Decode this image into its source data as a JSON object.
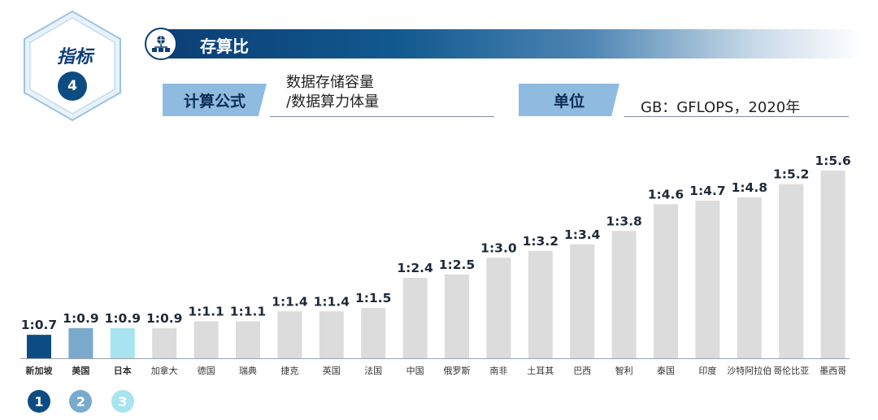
{
  "indicator": {
    "label": "指标",
    "number": "4"
  },
  "header": {
    "title": "存算比",
    "icon": "server-network-icon"
  },
  "formula": {
    "tag": "计算公式",
    "line1": "数据存储容量",
    "line2": "/数据算力体量"
  },
  "unit": {
    "tag": "单位",
    "value": "GB：GFLOPS，2020年"
  },
  "colors": {
    "dark_blue": "#0d4c82",
    "mid_blue": "#79aacb",
    "light_blue": "#a8e4ef",
    "grey": "#dcdcdc",
    "accent": "#8fbbe0"
  },
  "ranks": [
    "1",
    "2",
    "3"
  ],
  "chart_data": {
    "type": "bar",
    "title": "",
    "xlabel": "",
    "ylabel": "",
    "ylim": [
      0,
      5.6
    ],
    "grid": false,
    "categories": [
      "新加坡",
      "美国",
      "日本",
      "加拿大",
      "德国",
      "瑞典",
      "捷克",
      "英国",
      "法国",
      "中国",
      "俄罗斯",
      "南非",
      "土耳其",
      "巴西",
      "智利",
      "泰国",
      "印度",
      "沙特阿拉伯",
      "哥伦比亚",
      "墨西哥"
    ],
    "values": [
      0.7,
      0.9,
      0.9,
      0.9,
      1.1,
      1.1,
      1.4,
      1.4,
      1.5,
      2.4,
      2.5,
      3.0,
      3.2,
      3.4,
      3.8,
      4.6,
      4.7,
      4.8,
      5.2,
      5.6
    ],
    "labels": [
      "1:0.7",
      "1:0.9",
      "1:0.9",
      "1:0.9",
      "1:1.1",
      "1:1.1",
      "1:1.4",
      "1:1.4",
      "1:1.5",
      "1:2.4",
      "1:2.5",
      "1:3.0",
      "1:3.2",
      "1:3.4",
      "1:3.8",
      "1:4.6",
      "1:4.7",
      "1:4.8",
      "1:5.2",
      "1:5.6"
    ],
    "bar_colors": [
      "#0d4c82",
      "#79aacb",
      "#a8e4ef",
      "#dcdcdc",
      "#dcdcdc",
      "#dcdcdc",
      "#dcdcdc",
      "#dcdcdc",
      "#dcdcdc",
      "#dcdcdc",
      "#dcdcdc",
      "#dcdcdc",
      "#dcdcdc",
      "#dcdcdc",
      "#dcdcdc",
      "#dcdcdc",
      "#dcdcdc",
      "#dcdcdc",
      "#dcdcdc",
      "#dcdcdc"
    ],
    "highlight_count": 3
  }
}
